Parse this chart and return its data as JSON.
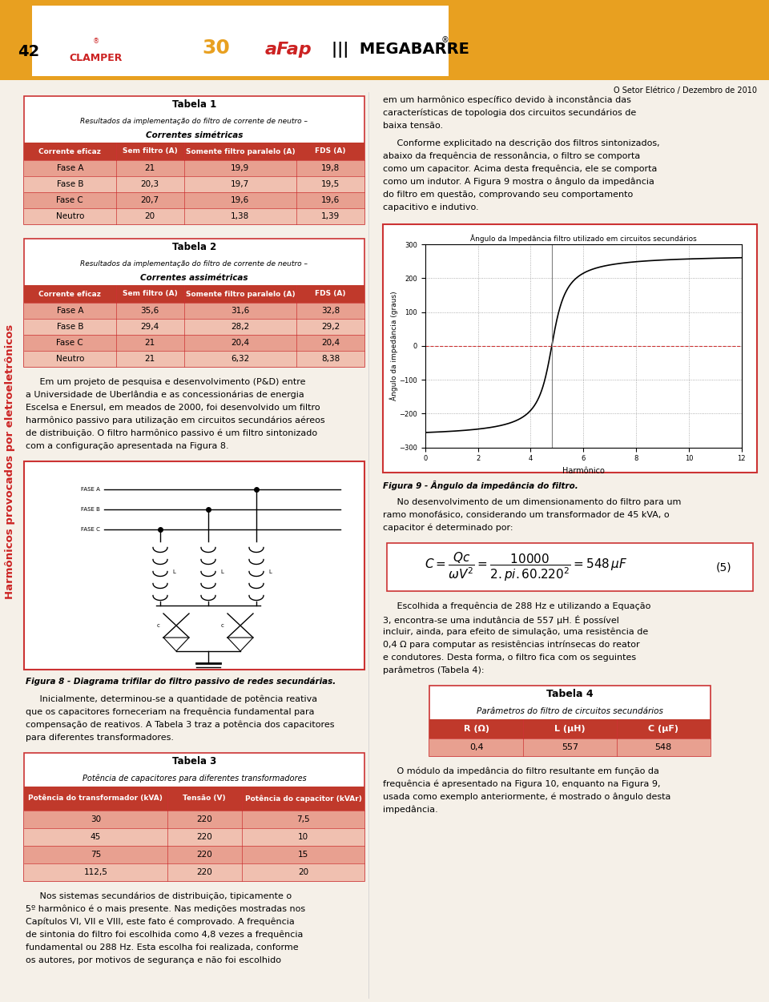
{
  "page_bg": "#f5f0e8",
  "header_bg": "#e8a020",
  "page_num": "42",
  "journal_text": "O Setor Elétrico / Dezembro de 2010",
  "sidebar_text": "Harmônicos provocados por eletroeletrônicos",
  "sidebar_color": "#cc2222",
  "table1_title": "Tabela 1",
  "table1_subtitle1": "Resultados da implementação do filtro de corrente de neutro –",
  "table1_subtitle2": "Correntes simétricas",
  "table1_header": [
    "Corrente eficaz",
    "Sem filtro (A)",
    "Somente filtro paralelo (A)",
    "FDS (A)"
  ],
  "table1_header_bg": "#c0392b",
  "table1_rows": [
    [
      "Fase A",
      "21",
      "19,9",
      "19,8"
    ],
    [
      "Fase B",
      "20,3",
      "19,7",
      "19,5"
    ],
    [
      "Fase C",
      "20,7",
      "19,6",
      "19,6"
    ],
    [
      "Neutro",
      "20",
      "1,38",
      "1,39"
    ]
  ],
  "table1_row_bg_odd": "#e8a090",
  "table1_row_bg_even": "#f0c0b0",
  "table1_border": "#cc3333",
  "table2_title": "Tabela 2",
  "table2_subtitle1": "Resultados da implementação do filtro de corrente de neutro –",
  "table2_subtitle2": "Correntes assimétricas",
  "table2_header": [
    "Corrente eficaz",
    "Sem filtro (A)",
    "Somente filtro paralelo (A)",
    "FDS (A)"
  ],
  "table2_header_bg": "#c0392b",
  "table2_rows": [
    [
      "Fase A",
      "35,6",
      "31,6",
      "32,8"
    ],
    [
      "Fase B",
      "29,4",
      "28,2",
      "29,2"
    ],
    [
      "Fase C",
      "21",
      "20,4",
      "20,4"
    ],
    [
      "Neutro",
      "21",
      "6,32",
      "8,38"
    ]
  ],
  "table2_row_bg_odd": "#e8a090",
  "table2_row_bg_even": "#f0c0b0",
  "table2_border": "#cc3333",
  "table3_title": "Tabela 3",
  "table3_subtitle": "Potência de capacitores para diferentes transformadores",
  "table3_header": [
    "Potência do transformador (kVA)",
    "Tensão (V)",
    "Potência do capacitor (kVAr)"
  ],
  "table3_header_bg": "#c0392b",
  "table3_rows": [
    [
      "30",
      "220",
      "7,5"
    ],
    [
      "45",
      "220",
      "10"
    ],
    [
      "75",
      "220",
      "15"
    ],
    [
      "112,5",
      "220",
      "20"
    ]
  ],
  "table3_row_bg_odd": "#e8a090",
  "table3_row_bg_even": "#f0c0b0",
  "table3_border": "#cc3333",
  "table4_title": "Tabela 4",
  "table4_subtitle": "Parâmetros do filtro de circuitos secundários",
  "table4_header": [
    "R (Ω)",
    "L (μH)",
    "C (μF)"
  ],
  "table4_header_bg": "#c0392b",
  "table4_rows": [
    [
      "0,4",
      "557",
      "548"
    ]
  ],
  "table4_row_bg": "#e8a090",
  "table4_border": "#cc3333",
  "fig9_title": "Ângulo da Impedância filtro utilizado em circuitos secundários",
  "fig9_xlabel": "Harmônico",
  "fig9_ylabel": "Ângulo da impedância (graus)"
}
